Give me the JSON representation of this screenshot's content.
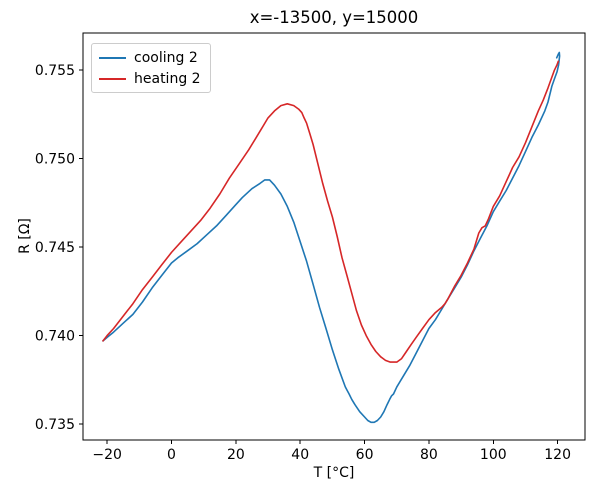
{
  "chart_data": {
    "type": "line",
    "title": "x=-13500, y=15000",
    "xlabel": "T [°C]",
    "ylabel": "R [Ω]",
    "xlim": [
      -27.5,
      128.5
    ],
    "ylim": [
      0.7341,
      0.7571
    ],
    "grid": false,
    "legend_position": "upper left",
    "x_ticks": [
      {
        "label": "−20",
        "value": -20
      },
      {
        "label": "0",
        "value": 0
      },
      {
        "label": "20",
        "value": 20
      },
      {
        "label": "40",
        "value": 40
      },
      {
        "label": "60",
        "value": 60
      },
      {
        "label": "80",
        "value": 80
      },
      {
        "label": "100",
        "value": 100
      },
      {
        "label": "120",
        "value": 120
      }
    ],
    "y_ticks": [
      {
        "label": "0.735",
        "value": 0.735
      },
      {
        "label": "0.740",
        "value": 0.74
      },
      {
        "label": "0.745",
        "value": 0.745
      },
      {
        "label": "0.750",
        "value": 0.75
      },
      {
        "label": "0.755",
        "value": 0.755
      }
    ],
    "series": [
      {
        "name": "cooling 2",
        "color": "#1f77b4",
        "points": [
          [
            119.7,
            0.7557
          ],
          [
            120.2,
            0.7559
          ],
          [
            120.5,
            0.756
          ],
          [
            120.6,
            0.7558
          ],
          [
            120.3,
            0.7553
          ],
          [
            119.8,
            0.7549
          ],
          [
            119.0,
            0.7545
          ],
          [
            118.2,
            0.7541
          ],
          [
            117.0,
            0.7532
          ],
          [
            116.0,
            0.7527
          ],
          [
            114.0,
            0.7519
          ],
          [
            112.0,
            0.7512
          ],
          [
            110.0,
            0.7504
          ],
          [
            108.0,
            0.7496
          ],
          [
            106.0,
            0.7489
          ],
          [
            104.0,
            0.7482
          ],
          [
            102.0,
            0.7476
          ],
          [
            100.0,
            0.747
          ],
          [
            98.0,
            0.7462
          ],
          [
            96.0,
            0.7455
          ],
          [
            94.0,
            0.7448
          ],
          [
            92.0,
            0.744
          ],
          [
            90.0,
            0.7433
          ],
          [
            88.0,
            0.7427
          ],
          [
            86.0,
            0.7421
          ],
          [
            84.0,
            0.7415
          ],
          [
            82.0,
            0.7409
          ],
          [
            80.0,
            0.7404
          ],
          [
            78.0,
            0.7397
          ],
          [
            76.0,
            0.739
          ],
          [
            74.0,
            0.7383
          ],
          [
            72.0,
            0.7377
          ],
          [
            70.0,
            0.7371
          ],
          [
            69.0,
            0.7367
          ],
          [
            68.4,
            0.7366
          ],
          [
            67.8,
            0.7364
          ],
          [
            67.0,
            0.7361
          ],
          [
            66.0,
            0.7357
          ],
          [
            65.0,
            0.7354
          ],
          [
            64.0,
            0.7352
          ],
          [
            63.0,
            0.7351
          ],
          [
            62.0,
            0.7351
          ],
          [
            61.0,
            0.7352
          ],
          [
            60.0,
            0.7354
          ],
          [
            58.5,
            0.7357
          ],
          [
            57.0,
            0.7361
          ],
          [
            56.0,
            0.7364
          ],
          [
            55.2,
            0.7367
          ],
          [
            54.6,
            0.7369
          ],
          [
            54.0,
            0.7371
          ],
          [
            52.0,
            0.7381
          ],
          [
            50.0,
            0.7392
          ],
          [
            48.0,
            0.7404
          ],
          [
            46.0,
            0.7416
          ],
          [
            44.0,
            0.7429
          ],
          [
            42.0,
            0.7442
          ],
          [
            40.0,
            0.7453
          ],
          [
            38.0,
            0.7464
          ],
          [
            36.0,
            0.7473
          ],
          [
            34.0,
            0.748
          ],
          [
            32.0,
            0.7485
          ],
          [
            30.5,
            0.7488
          ],
          [
            29.0,
            0.7488
          ],
          [
            27.5,
            0.7486
          ],
          [
            25.0,
            0.7483
          ],
          [
            22.0,
            0.7478
          ],
          [
            20.0,
            0.7474
          ],
          [
            17.0,
            0.7468
          ],
          [
            14.0,
            0.7462
          ],
          [
            11.0,
            0.7457
          ],
          [
            8.0,
            0.7452
          ],
          [
            5.0,
            0.7448
          ],
          [
            2.0,
            0.7444
          ],
          [
            0.0,
            0.7441
          ],
          [
            -3.0,
            0.7434
          ],
          [
            -6.0,
            0.7427
          ],
          [
            -9.0,
            0.7419
          ],
          [
            -12.0,
            0.7412
          ],
          [
            -15.0,
            0.7407
          ],
          [
            -18.0,
            0.7402
          ],
          [
            -20.0,
            0.7399
          ],
          [
            -21.3,
            0.7397
          ]
        ]
      },
      {
        "name": "heating 2",
        "color": "#d62728",
        "points": [
          [
            -21.3,
            0.7397
          ],
          [
            -20.0,
            0.74
          ],
          [
            -18.0,
            0.7404
          ],
          [
            -15.0,
            0.7411
          ],
          [
            -12.0,
            0.7418
          ],
          [
            -9.0,
            0.7426
          ],
          [
            -6.0,
            0.7433
          ],
          [
            -3.0,
            0.744
          ],
          [
            0.0,
            0.7447
          ],
          [
            3.0,
            0.7453
          ],
          [
            6.0,
            0.7459
          ],
          [
            9.0,
            0.7465
          ],
          [
            12.0,
            0.7472
          ],
          [
            15.0,
            0.748
          ],
          [
            18.0,
            0.7489
          ],
          [
            21.0,
            0.7497
          ],
          [
            24.0,
            0.7505
          ],
          [
            26.0,
            0.7511
          ],
          [
            28.0,
            0.7517
          ],
          [
            30.0,
            0.7523
          ],
          [
            32.0,
            0.7527
          ],
          [
            34.0,
            0.753
          ],
          [
            36.0,
            0.7531
          ],
          [
            38.0,
            0.753
          ],
          [
            39.5,
            0.7528
          ],
          [
            40.5,
            0.7526
          ],
          [
            41.2,
            0.7523
          ],
          [
            42.0,
            0.752
          ],
          [
            43.0,
            0.7514
          ],
          [
            44.0,
            0.7508
          ],
          [
            45.5,
            0.7497
          ],
          [
            47.0,
            0.7486
          ],
          [
            48.5,
            0.7476
          ],
          [
            50.0,
            0.7467
          ],
          [
            51.5,
            0.7456
          ],
          [
            53.0,
            0.7444
          ],
          [
            54.5,
            0.7434
          ],
          [
            56.0,
            0.7424
          ],
          [
            57.5,
            0.7414
          ],
          [
            59.0,
            0.7406
          ],
          [
            60.5,
            0.74
          ],
          [
            62.0,
            0.7395
          ],
          [
            63.5,
            0.7391
          ],
          [
            65.0,
            0.7388
          ],
          [
            66.5,
            0.7386
          ],
          [
            68.0,
            0.7385
          ],
          [
            70.0,
            0.7385
          ],
          [
            71.5,
            0.7387
          ],
          [
            73.0,
            0.7391
          ],
          [
            74.5,
            0.7395
          ],
          [
            76.0,
            0.7399
          ],
          [
            78.0,
            0.7404
          ],
          [
            80.0,
            0.7409
          ],
          [
            82.0,
            0.7413
          ],
          [
            84.0,
            0.7416
          ],
          [
            85.0,
            0.7418
          ],
          [
            86.0,
            0.7421
          ],
          [
            88.0,
            0.7428
          ],
          [
            90.0,
            0.7434
          ],
          [
            92.0,
            0.7441
          ],
          [
            94.0,
            0.7449
          ],
          [
            95.5,
            0.7458
          ],
          [
            96.5,
            0.7461
          ],
          [
            97.5,
            0.7462
          ],
          [
            98.5,
            0.7466
          ],
          [
            100.0,
            0.7473
          ],
          [
            102.0,
            0.7479
          ],
          [
            104.0,
            0.7487
          ],
          [
            106.0,
            0.7495
          ],
          [
            108.0,
            0.7501
          ],
          [
            110.0,
            0.7509
          ],
          [
            112.0,
            0.7518
          ],
          [
            114.0,
            0.7527
          ],
          [
            115.5,
            0.7533
          ],
          [
            117.0,
            0.754
          ],
          [
            118.0,
            0.7545
          ],
          [
            119.0,
            0.755
          ],
          [
            119.8,
            0.7553
          ],
          [
            120.2,
            0.7555
          ]
        ]
      }
    ]
  }
}
